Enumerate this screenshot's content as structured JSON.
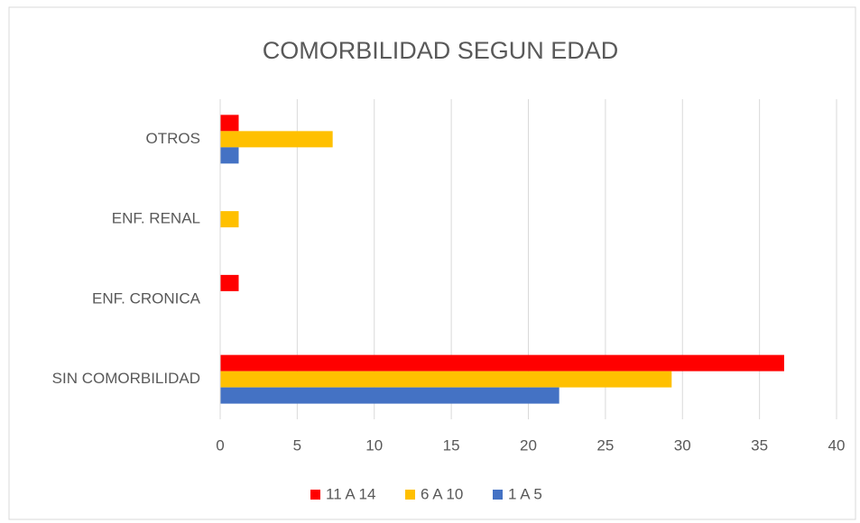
{
  "chart_data": {
    "type": "bar",
    "orientation": "horizontal",
    "title": "COMORBILIDAD SEGUN EDAD",
    "categories": [
      "OTROS",
      "ENF. RENAL",
      "ENF. CRONICA",
      "SIN COMORBILIDAD"
    ],
    "series": [
      {
        "name": "11 A 14",
        "color": "#ff0000",
        "values": [
          1.2,
          0,
          1.2,
          36.6
        ]
      },
      {
        "name": "6 A 10",
        "color": "#ffc000",
        "values": [
          7.3,
          1.2,
          0,
          29.3
        ]
      },
      {
        "name": "1 A 5",
        "color": "#4472c4",
        "values": [
          1.2,
          0,
          0,
          22.0
        ]
      }
    ],
    "xlim": [
      0,
      40
    ],
    "xticks": [
      0,
      5,
      10,
      15,
      20,
      25,
      30,
      35,
      40
    ],
    "grid": true,
    "legend": "bottom"
  }
}
